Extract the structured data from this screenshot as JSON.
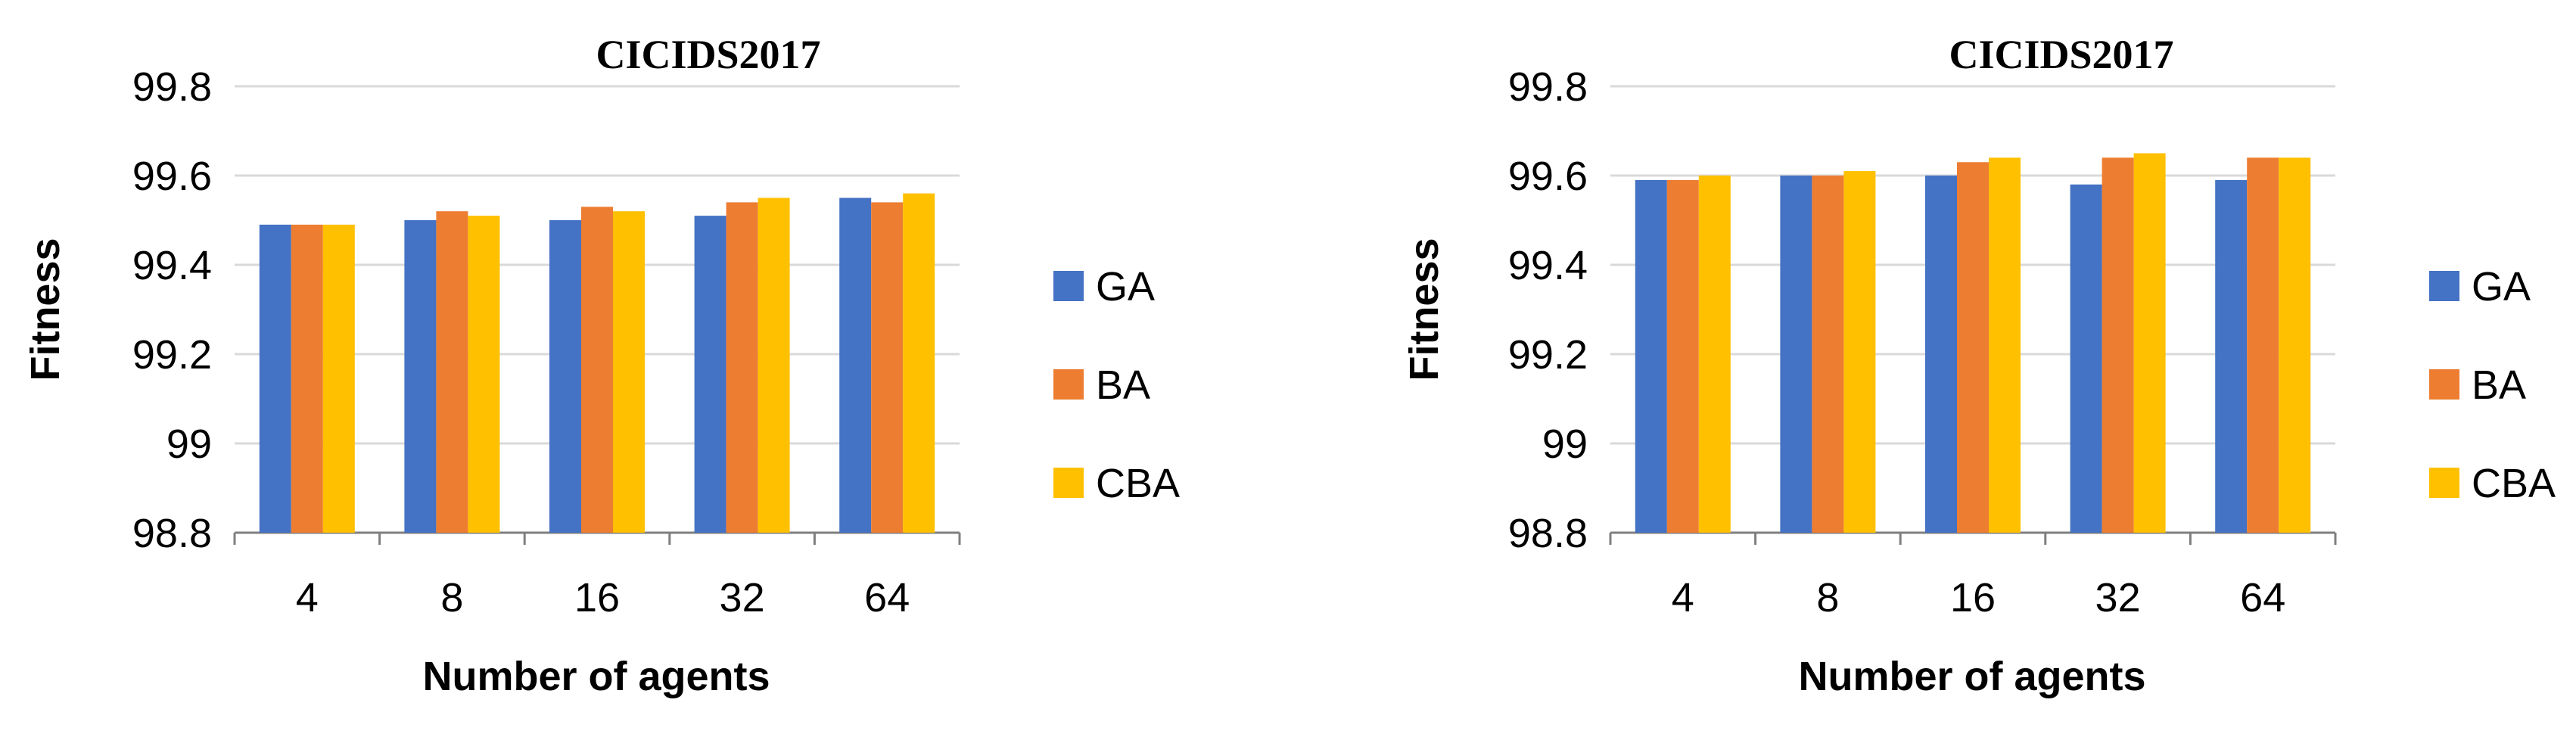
{
  "chart_data": [
    {
      "type": "bar",
      "title": "CICIDS2017",
      "xlabel": "Number of agents",
      "ylabel": "Fitness",
      "categories": [
        "4",
        "8",
        "16",
        "32",
        "64"
      ],
      "ylim": [
        98.8,
        99.8
      ],
      "yticks": [
        "98.8",
        "99",
        "99.2",
        "99.4",
        "99.6",
        "99.8"
      ],
      "grid": true,
      "legend": "right",
      "series": [
        {
          "name": "GA",
          "color": "#4472C4",
          "values": [
            99.49,
            99.5,
            99.5,
            99.51,
            99.55
          ]
        },
        {
          "name": "BA",
          "color": "#ED7D31",
          "values": [
            99.49,
            99.52,
            99.53,
            99.54,
            99.54
          ]
        },
        {
          "name": "CBA",
          "color": "#FFC000",
          "values": [
            99.49,
            99.51,
            99.52,
            99.55,
            99.56
          ]
        }
      ]
    },
    {
      "type": "bar",
      "title": "CICIDS2017",
      "xlabel": "Number of agents",
      "ylabel": "Fitness",
      "categories": [
        "4",
        "8",
        "16",
        "32",
        "64"
      ],
      "ylim": [
        98.8,
        99.8
      ],
      "yticks": [
        "98.8",
        "99",
        "99.2",
        "99.4",
        "99.6",
        "99.8"
      ],
      "grid": true,
      "legend": "right",
      "series": [
        {
          "name": "GA",
          "color": "#4472C4",
          "values": [
            99.59,
            99.6,
            99.6,
            99.58,
            99.59
          ]
        },
        {
          "name": "BA",
          "color": "#ED7D31",
          "values": [
            99.59,
            99.6,
            99.63,
            99.64,
            99.64
          ]
        },
        {
          "name": "CBA",
          "color": "#FFC000",
          "values": [
            99.6,
            99.61,
            99.64,
            99.65,
            99.64
          ]
        }
      ]
    }
  ]
}
